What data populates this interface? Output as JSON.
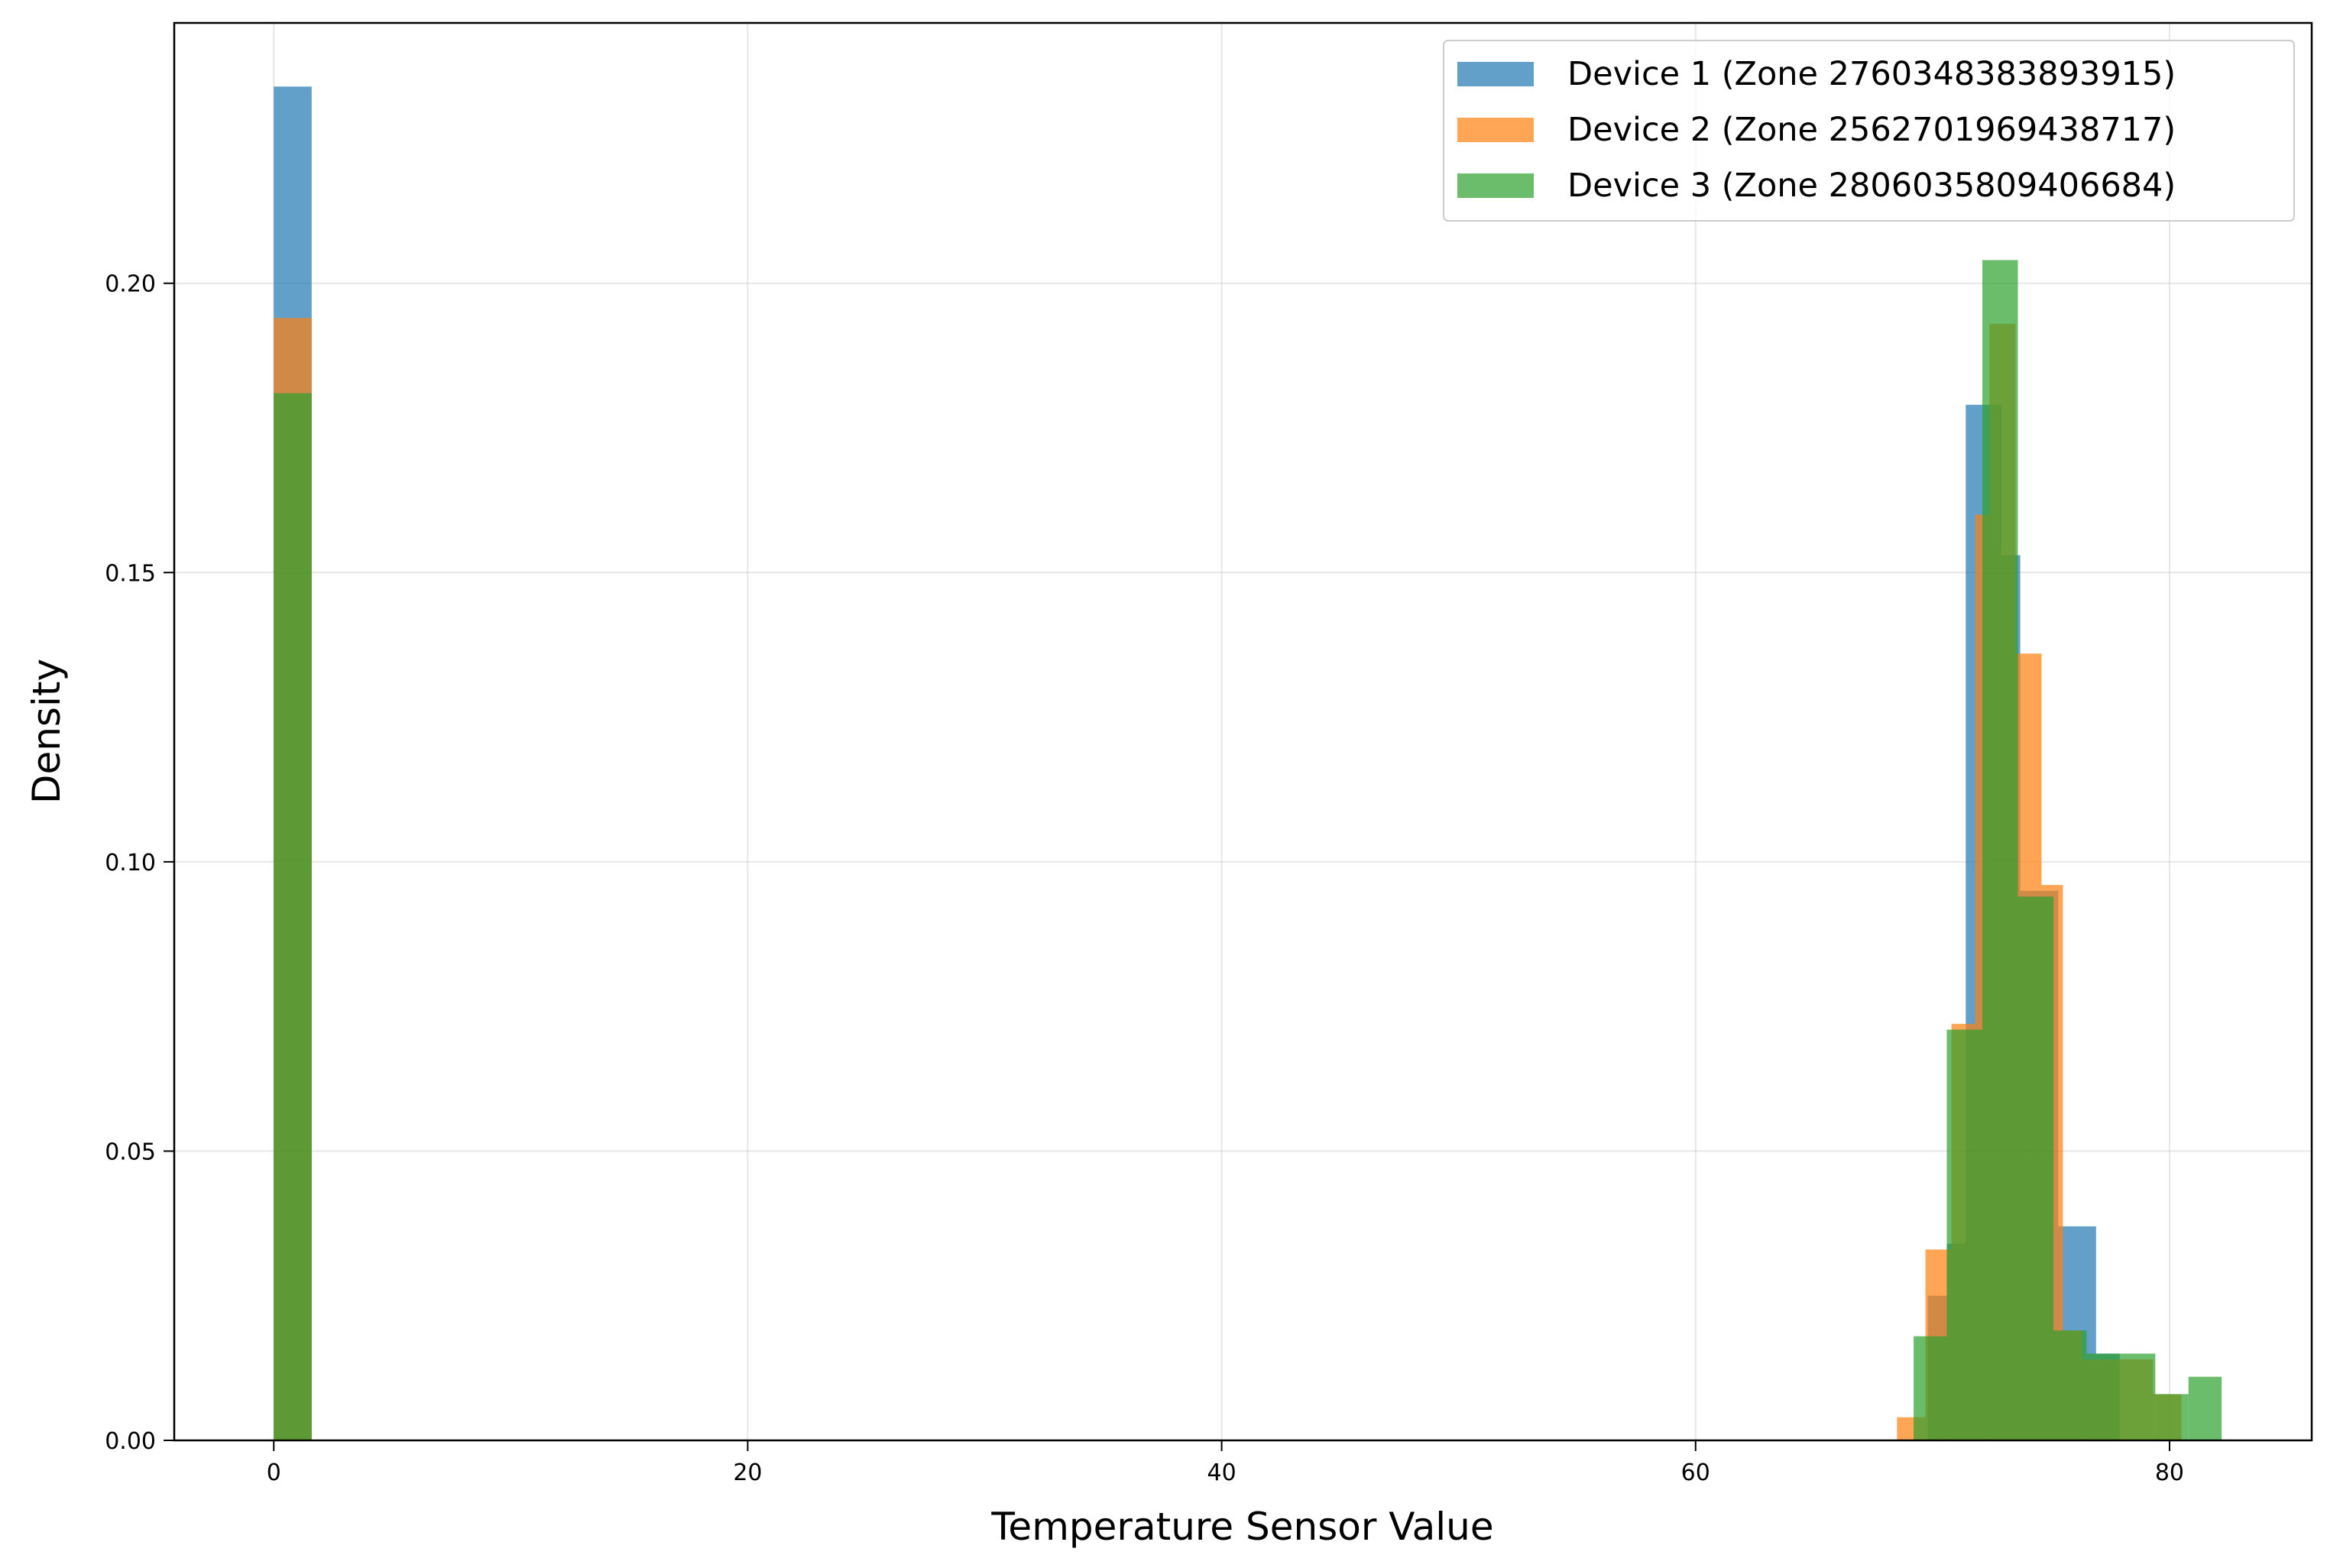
{
  "chart_data": {
    "type": "histogram",
    "xlabel": "Temperature Sensor Value",
    "ylabel": "Density",
    "xlim": [
      -4.2,
      86
    ],
    "ylim": [
      0,
      0.245
    ],
    "xticks": [
      0,
      20,
      40,
      60,
      80
    ],
    "xtick_labels": [
      "0",
      "20",
      "40",
      "60",
      "80"
    ],
    "yticks": [
      0.0,
      0.05,
      0.1,
      0.15,
      0.2
    ],
    "ytick_labels": [
      "0.00",
      "0.05",
      "0.10",
      "0.15",
      "0.20"
    ],
    "grid": true,
    "legend_position": "top-right",
    "series": [
      {
        "name": "Device 1 (Zone 2760348383893915)",
        "color": "#1f77b4",
        "bins": [
          {
            "x0": 0.0,
            "x1": 1.6,
            "y": 0.234
          },
          {
            "x0": 69.8,
            "x1": 70.6,
            "y": 0.025
          },
          {
            "x0": 70.6,
            "x1": 71.4,
            "y": 0.034
          },
          {
            "x0": 71.4,
            "x1": 72.9,
            "y": 0.179
          },
          {
            "x0": 72.9,
            "x1": 73.7,
            "y": 0.153
          },
          {
            "x0": 73.7,
            "x1": 75.3,
            "y": 0.095
          },
          {
            "x0": 75.3,
            "x1": 76.9,
            "y": 0.037
          },
          {
            "x0": 76.9,
            "x1": 77.9,
            "y": 0.015
          }
        ]
      },
      {
        "name": "Device 2 (Zone 2562701969438717)",
        "color": "#ff7f0e",
        "bins": [
          {
            "x0": 0.0,
            "x1": 1.6,
            "y": 0.194
          },
          {
            "x0": 68.5,
            "x1": 69.7,
            "y": 0.004
          },
          {
            "x0": 69.7,
            "x1": 70.8,
            "y": 0.033
          },
          {
            "x0": 70.8,
            "x1": 71.8,
            "y": 0.072
          },
          {
            "x0": 71.8,
            "x1": 72.4,
            "y": 0.16
          },
          {
            "x0": 72.4,
            "x1": 73.5,
            "y": 0.193
          },
          {
            "x0": 73.5,
            "x1": 74.6,
            "y": 0.136
          },
          {
            "x0": 74.6,
            "x1": 75.5,
            "y": 0.096
          },
          {
            "x0": 75.5,
            "x1": 76.3,
            "y": 0.019
          },
          {
            "x0": 76.3,
            "x1": 79.3,
            "y": 0.014
          },
          {
            "x0": 79.3,
            "x1": 80.5,
            "y": 0.008
          }
        ]
      },
      {
        "name": "Device 3 (Zone 2806035809406684)",
        "color": "#2ca02c",
        "bins": [
          {
            "x0": 0.0,
            "x1": 1.6,
            "y": 0.181
          },
          {
            "x0": 69.2,
            "x1": 70.6,
            "y": 0.018
          },
          {
            "x0": 70.6,
            "x1": 72.1,
            "y": 0.071
          },
          {
            "x0": 72.1,
            "x1": 73.6,
            "y": 0.204
          },
          {
            "x0": 73.6,
            "x1": 75.1,
            "y": 0.094
          },
          {
            "x0": 75.1,
            "x1": 76.5,
            "y": 0.019
          },
          {
            "x0": 76.5,
            "x1": 78.0,
            "y": 0.015
          },
          {
            "x0": 78.0,
            "x1": 79.4,
            "y": 0.015
          },
          {
            "x0": 79.4,
            "x1": 80.8,
            "y": 0.008
          },
          {
            "x0": 80.8,
            "x1": 82.2,
            "y": 0.011
          }
        ]
      }
    ]
  }
}
